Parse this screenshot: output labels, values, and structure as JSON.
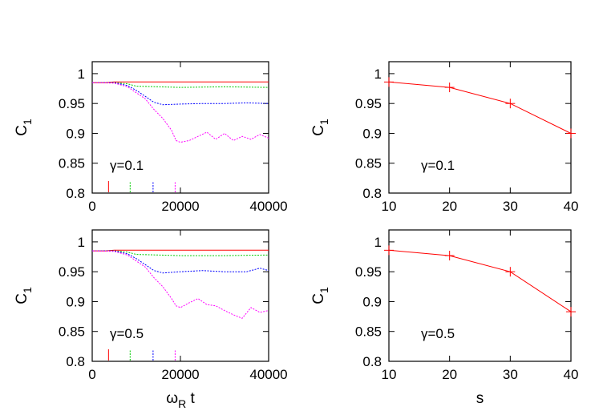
{
  "chart_data": [
    {
      "type": "line",
      "panel": "top-left",
      "ylabel": "C",
      "ylabel_sub": "1",
      "annotation": "γ=0.1",
      "xlim": [
        0,
        40000
      ],
      "ylim": [
        0.8,
        1.02
      ],
      "xticks": [
        0,
        20000,
        40000
      ],
      "yticks": [
        0.8,
        0.85,
        0.9,
        0.95,
        1
      ],
      "ytick_labels": [
        "0.8",
        "0.85",
        "0.9",
        "0.95",
        "1"
      ],
      "series": [
        {
          "color": "#ff0000",
          "x": [
            0,
            3000,
            5000,
            10000,
            20000,
            30000,
            40000
          ],
          "y": [
            0.985,
            0.985,
            0.986,
            0.986,
            0.986,
            0.986,
            0.986
          ]
        },
        {
          "color": "#00cc00",
          "x": [
            0,
            5000,
            8000,
            10000,
            15000,
            20000,
            30000,
            40000
          ],
          "y": [
            0.985,
            0.985,
            0.983,
            0.979,
            0.978,
            0.977,
            0.978,
            0.977
          ]
        },
        {
          "color": "#0000ff",
          "x": [
            0,
            5000,
            8000,
            10000,
            12000,
            14000,
            16000,
            20000,
            25000,
            30000,
            35000,
            40000
          ],
          "y": [
            0.985,
            0.985,
            0.98,
            0.972,
            0.962,
            0.952,
            0.948,
            0.949,
            0.95,
            0.95,
            0.951,
            0.95
          ]
        },
        {
          "color": "#ff00ff",
          "x": [
            0,
            5000,
            8000,
            10000,
            12000,
            14000,
            16000,
            18000,
            19000,
            20000,
            22000,
            24000,
            26000,
            28000,
            30000,
            32000,
            34000,
            36000,
            38000,
            40000
          ],
          "y": [
            0.985,
            0.984,
            0.978,
            0.968,
            0.958,
            0.94,
            0.925,
            0.905,
            0.888,
            0.885,
            0.888,
            0.895,
            0.902,
            0.89,
            0.9,
            0.888,
            0.895,
            0.89,
            0.898,
            0.892
          ]
        }
      ],
      "markers": [
        {
          "x": 3700,
          "color": "#ff0000"
        },
        {
          "x": 8600,
          "color": "#00cc00"
        },
        {
          "x": 13800,
          "color": "#0000ff"
        },
        {
          "x": 18800,
          "color": "#ff00ff"
        }
      ]
    },
    {
      "type": "line",
      "panel": "top-right",
      "ylabel": "C",
      "ylabel_sub": "1",
      "annotation": "γ=0.1",
      "xlim": [
        10,
        40
      ],
      "ylim": [
        0.8,
        1.02
      ],
      "xticks": [
        10,
        20,
        30,
        40
      ],
      "yticks": [
        0.8,
        0.85,
        0.9,
        0.95,
        1
      ],
      "ytick_labels": [
        "0.8",
        "0.85",
        "0.9",
        "0.95",
        "1"
      ],
      "series": [
        {
          "color": "#ff0000",
          "x": [
            10,
            20,
            30,
            40
          ],
          "y": [
            0.986,
            0.977,
            0.95,
            0.9
          ]
        }
      ]
    },
    {
      "type": "line",
      "panel": "bottom-left",
      "ylabel": "C",
      "ylabel_sub": "1",
      "xlabel": "ω",
      "xlabel_sub": "R",
      "xlabel_suffix": " t",
      "annotation": "γ=0.5",
      "xlim": [
        0,
        40000
      ],
      "ylim": [
        0.8,
        1.02
      ],
      "xticks": [
        0,
        20000,
        40000
      ],
      "yticks": [
        0.8,
        0.85,
        0.9,
        0.95,
        1
      ],
      "ytick_labels": [
        "0.8",
        "0.85",
        "0.9",
        "0.95",
        "1"
      ],
      "series": [
        {
          "color": "#ff0000",
          "x": [
            0,
            3000,
            5000,
            10000,
            20000,
            30000,
            40000
          ],
          "y": [
            0.985,
            0.985,
            0.986,
            0.986,
            0.986,
            0.986,
            0.986
          ]
        },
        {
          "color": "#00cc00",
          "x": [
            0,
            5000,
            8000,
            10000,
            15000,
            20000,
            30000,
            40000
          ],
          "y": [
            0.985,
            0.985,
            0.983,
            0.979,
            0.978,
            0.977,
            0.977,
            0.978
          ]
        },
        {
          "color": "#0000ff",
          "x": [
            0,
            5000,
            8000,
            10000,
            12000,
            14000,
            16000,
            20000,
            25000,
            30000,
            35000,
            38000,
            40000
          ],
          "y": [
            0.985,
            0.985,
            0.98,
            0.972,
            0.962,
            0.952,
            0.948,
            0.95,
            0.952,
            0.95,
            0.95,
            0.956,
            0.952
          ]
        },
        {
          "color": "#ff00ff",
          "x": [
            0,
            5000,
            8000,
            10000,
            12000,
            14000,
            16000,
            18000,
            19000,
            20000,
            22000,
            24000,
            26000,
            28000,
            30000,
            32000,
            34000,
            36000,
            38000,
            40000
          ],
          "y": [
            0.985,
            0.984,
            0.978,
            0.968,
            0.958,
            0.94,
            0.925,
            0.905,
            0.893,
            0.89,
            0.898,
            0.905,
            0.895,
            0.893,
            0.885,
            0.878,
            0.872,
            0.89,
            0.882,
            0.885
          ]
        }
      ],
      "markers": [
        {
          "x": 3700,
          "color": "#ff0000"
        },
        {
          "x": 8600,
          "color": "#00cc00"
        },
        {
          "x": 13800,
          "color": "#0000ff"
        },
        {
          "x": 18800,
          "color": "#ff00ff"
        }
      ]
    },
    {
      "type": "line",
      "panel": "bottom-right",
      "ylabel": "C",
      "ylabel_sub": "1",
      "xlabel": "s",
      "annotation": "γ=0.5",
      "xlim": [
        10,
        40
      ],
      "ylim": [
        0.8,
        1.02
      ],
      "xticks": [
        10,
        20,
        30,
        40
      ],
      "yticks": [
        0.8,
        0.85,
        0.9,
        0.95,
        1
      ],
      "ytick_labels": [
        "0.8",
        "0.85",
        "0.9",
        "0.95",
        "1"
      ],
      "series": [
        {
          "color": "#ff0000",
          "x": [
            10,
            20,
            30,
            40
          ],
          "y": [
            0.986,
            0.977,
            0.95,
            0.883
          ]
        }
      ]
    }
  ]
}
